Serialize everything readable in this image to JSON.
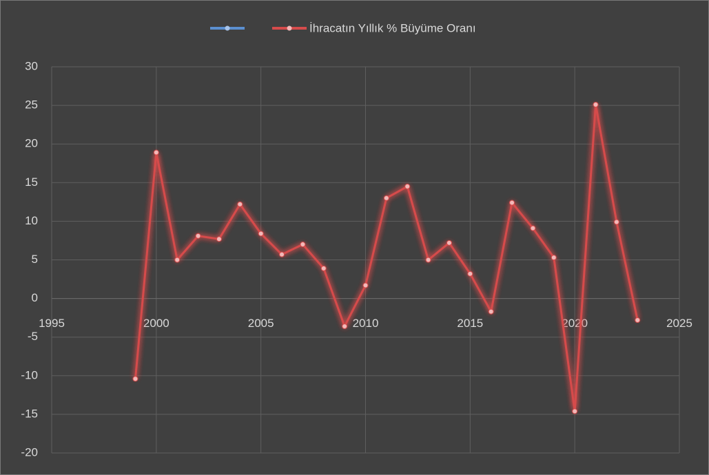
{
  "chart_data": {
    "type": "line",
    "x": [
      1999,
      2000,
      2001,
      2002,
      2003,
      2004,
      2005,
      2006,
      2007,
      2008,
      2009,
      2010,
      2011,
      2012,
      2013,
      2014,
      2015,
      2016,
      2017,
      2018,
      2019,
      2020,
      2021,
      2022,
      2023
    ],
    "series": [
      {
        "name": "İhracatın Yıllık % Büyüme Oranı",
        "color": "#d64b4b",
        "values": [
          -10.4,
          18.9,
          5.0,
          8.1,
          7.7,
          12.2,
          8.4,
          5.7,
          7.0,
          3.9,
          -3.6,
          1.7,
          13.0,
          14.5,
          5.0,
          7.2,
          3.2,
          -1.7,
          12.4,
          9.1,
          5.3,
          -14.6,
          25.1,
          9.9,
          -2.8
        ]
      }
    ],
    "xlim": [
      1995,
      2025
    ],
    "xticks": [
      1995,
      2000,
      2005,
      2010,
      2015,
      2020,
      2025
    ],
    "ylim": [
      -20,
      30
    ],
    "yticks": [
      -20,
      -15,
      -10,
      -5,
      0,
      5,
      10,
      15,
      20,
      25,
      30
    ],
    "grid": true,
    "legend": "top"
  }
}
